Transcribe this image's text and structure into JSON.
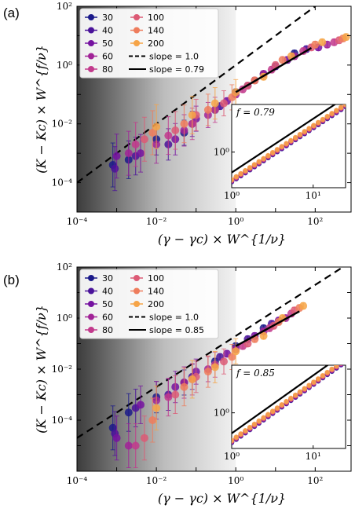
{
  "series_colors": {
    "30": "#1b1a8a",
    "40": "#4a139a",
    "50": "#7512a0",
    "60": "#a12297",
    "80": "#c23a8c",
    "100": "#dc5a75",
    "140": "#ee7c5c",
    "200": "#f6a447"
  },
  "chart_data": [
    {
      "panel_label": "(a)",
      "type": "scatter",
      "xlabel": "(γ − γc) × W^{1/ν}",
      "ylabel": "(K − Kc) × W^{f/ν}",
      "xscale": "log",
      "yscale": "log",
      "xlim": [
        0.0001,
        800
      ],
      "ylim": [
        1e-05,
        100
      ],
      "xticks": [
        "10⁻⁴",
        "10⁻²",
        "10⁰",
        "10²"
      ],
      "yticks": [
        "10⁻⁴",
        "10⁻²",
        "10⁰",
        "10²"
      ],
      "legend_position": "top-left",
      "series": [
        {
          "name": "30",
          "x": [
            0.0008,
            0.002,
            0.01,
            0.05,
            0.3,
            1,
            5,
            30
          ],
          "y": [
            0.0004,
            0.0006,
            0.003,
            0.005,
            0.03,
            0.12,
            0.5,
            2.5
          ]
        },
        {
          "name": "40",
          "x": [
            0.0009,
            0.003,
            0.02,
            0.08,
            0.4,
            2,
            10,
            60
          ],
          "y": [
            0.0003,
            0.0008,
            0.002,
            0.01,
            0.04,
            0.2,
            0.9,
            3.5
          ]
        },
        {
          "name": "50",
          "x": [
            0.001,
            0.004,
            0.03,
            0.1,
            0.6,
            3,
            20,
            120
          ],
          "y": [
            0.0008,
            0.001,
            0.003,
            0.015,
            0.06,
            0.3,
            1.5,
            4
          ]
        },
        {
          "name": "60",
          "x": [
            0.002,
            0.01,
            0.05,
            0.2,
            1,
            5,
            30,
            200
          ],
          "y": [
            0.001,
            0.002,
            0.006,
            0.02,
            0.1,
            0.5,
            2,
            5
          ]
        },
        {
          "name": "80",
          "x": [
            0.003,
            0.02,
            0.08,
            0.3,
            1.5,
            8,
            50,
            300
          ],
          "y": [
            0.002,
            0.004,
            0.01,
            0.03,
            0.15,
            0.7,
            3,
            6
          ]
        },
        {
          "name": "100",
          "x": [
            0.005,
            0.03,
            0.1,
            0.5,
            2,
            10,
            80,
            400
          ],
          "y": [
            0.003,
            0.006,
            0.02,
            0.05,
            0.2,
            1,
            4,
            7
          ]
        },
        {
          "name": "140",
          "x": [
            0.008,
            0.05,
            0.2,
            0.8,
            3,
            15,
            100,
            500
          ],
          "y": [
            0.005,
            0.01,
            0.03,
            0.08,
            0.3,
            1.5,
            5,
            8
          ]
        },
        {
          "name": "200",
          "x": [
            0.01,
            0.08,
            0.3,
            1,
            5,
            25,
            150,
            600
          ],
          "y": [
            0.008,
            0.02,
            0.05,
            0.12,
            0.4,
            2,
            6,
            9
          ]
        }
      ],
      "lines": [
        {
          "name": "slope = 1.0",
          "style": "dashed",
          "slope": 1.0,
          "x0": 0.0001,
          "y0": 0.0001
        },
        {
          "name": "slope = 0.79",
          "style": "solid",
          "slope": 0.79,
          "x0": 1,
          "y0": 0.12,
          "xrange": [
            1,
            80
          ]
        }
      ],
      "inset": {
        "label": "f = 0.79",
        "xscale": "log",
        "yscale": "log",
        "xlim": [
          1,
          25
        ],
        "ylim": [
          0.3,
          5
        ],
        "xticks": [
          "10⁰",
          "10¹"
        ],
        "yticks": [
          "10⁰"
        ]
      }
    },
    {
      "panel_label": "(b)",
      "type": "scatter",
      "xlabel": "(γ − γc) × W^{1/ν}",
      "ylabel": "(K − Kc) × W^{f/ν}",
      "xscale": "log",
      "yscale": "log",
      "xlim": [
        0.0001,
        800
      ],
      "ylim": [
        1e-06,
        100
      ],
      "xticks": [
        "10⁻⁴",
        "10⁻²",
        "10⁰",
        "10²"
      ],
      "yticks": [
        "10⁻⁴",
        "10⁻²",
        "10⁰",
        "10²"
      ],
      "legend_position": "top-left",
      "series": [
        {
          "name": "30",
          "x": [
            0.0008,
            0.002,
            0.01,
            0.05,
            0.3,
            1,
            5
          ],
          "y": [
            5e-05,
            0.0002,
            0.0008,
            0.003,
            0.02,
            0.08,
            0.4
          ]
        },
        {
          "name": "40",
          "x": [
            0.0009,
            0.003,
            0.02,
            0.08,
            0.4,
            2,
            8
          ],
          "y": [
            3e-05,
            0.0003,
            0.001,
            0.005,
            0.03,
            0.15,
            0.6
          ]
        },
        {
          "name": "50",
          "x": [
            0.001,
            0.004,
            0.03,
            0.1,
            0.6,
            3,
            12
          ],
          "y": [
            2e-05,
            0.0004,
            0.002,
            0.008,
            0.04,
            0.2,
            0.8
          ]
        },
        {
          "name": "60",
          "x": [
            0.002,
            0.01,
            0.05,
            0.2,
            1,
            5,
            18
          ],
          "y": [
            1e-05,
            0.0006,
            0.003,
            0.01,
            0.06,
            0.3,
            1
          ]
        },
        {
          "name": "80",
          "x": [
            0.003,
            0.02,
            0.08,
            0.3,
            1.5,
            7,
            25
          ],
          "y": [
            1e-05,
            0.0008,
            0.004,
            0.015,
            0.08,
            0.4,
            1.5
          ]
        },
        {
          "name": "100",
          "x": [
            0.005,
            0.03,
            0.1,
            0.5,
            2,
            9,
            30
          ],
          "y": [
            2e-05,
            0.001,
            0.005,
            0.02,
            0.1,
            0.5,
            2
          ]
        },
        {
          "name": "140",
          "x": [
            0.008,
            0.05,
            0.2,
            0.8,
            3,
            12,
            40
          ],
          "y": [
            0.0001,
            0.002,
            0.008,
            0.03,
            0.15,
            0.7,
            2.5
          ]
        },
        {
          "name": "200",
          "x": [
            0.01,
            0.08,
            0.3,
            1,
            5,
            15,
            50
          ],
          "y": [
            0.0003,
            0.004,
            0.012,
            0.05,
            0.2,
            1,
            3
          ]
        }
      ],
      "lines": [
        {
          "name": "slope = 1.0",
          "style": "dashed",
          "slope": 1.0,
          "x0": 0.0001,
          "y0": 2e-05
        },
        {
          "name": "slope = 0.85",
          "style": "solid",
          "slope": 0.85,
          "x0": 1,
          "y0": 0.08,
          "xrange": [
            1,
            40
          ]
        }
      ],
      "inset": {
        "label": "f = 0.85",
        "xscale": "log",
        "yscale": "log",
        "xlim": [
          1,
          25
        ],
        "ylim": [
          0.3,
          5
        ],
        "xticks": [
          "10⁰",
          "10¹"
        ],
        "yticks": [
          "10⁰"
        ]
      }
    }
  ]
}
